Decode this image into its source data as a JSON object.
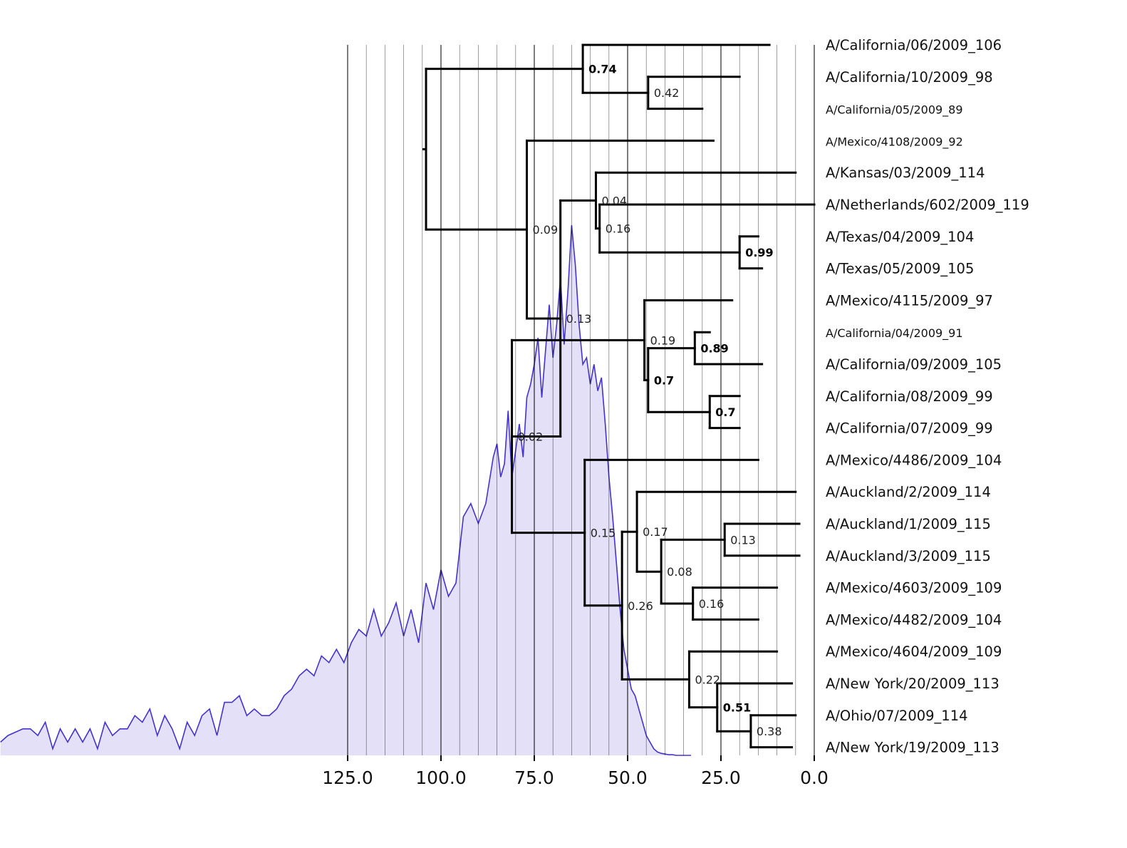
{
  "chart_data": {
    "type": "phylogenetic-tree-with-density",
    "x_axis": {
      "ticks": [
        125,
        100,
        75,
        50,
        25,
        0
      ],
      "tick_labels": [
        "125.0",
        "100.0",
        "75.0",
        "50.0",
        "25.0",
        "0.0"
      ],
      "minor_step": 5,
      "direction": "reversed",
      "grid": true
    },
    "colors": {
      "density_line": "#4433cc",
      "density_fill": "#e4e0f8",
      "tree": "#000000",
      "grid": "#000000"
    },
    "taxa": [
      {
        "name": "A/California/06/2009_106",
        "x": 12
      },
      {
        "name": "A/California/10/2009_98",
        "x": 20
      },
      {
        "name": "A/California/05/2009_89",
        "x": 30
      },
      {
        "name": "A/Mexico/4108/2009_92",
        "x": 27
      },
      {
        "name": "A/Kansas/03/2009_114",
        "x": 5
      },
      {
        "name": "A/Netherlands/602/2009_119",
        "x": 0
      },
      {
        "name": "A/Texas/04/2009_104",
        "x": 15
      },
      {
        "name": "A/Texas/05/2009_105",
        "x": 14
      },
      {
        "name": "A/Mexico/4115/2009_97",
        "x": 22
      },
      {
        "name": "A/California/04/2009_91",
        "x": 28
      },
      {
        "name": "A/California/09/2009_105",
        "x": 14
      },
      {
        "name": "A/California/08/2009_99",
        "x": 20
      },
      {
        "name": "A/California/07/2009_99",
        "x": 20
      },
      {
        "name": "A/Mexico/4486/2009_104",
        "x": 15
      },
      {
        "name": "A/Auckland/2/2009_114",
        "x": 5
      },
      {
        "name": "A/Auckland/1/2009_115",
        "x": 4
      },
      {
        "name": "A/Auckland/3/2009_115",
        "x": 4
      },
      {
        "name": "A/Mexico/4603/2009_109",
        "x": 10
      },
      {
        "name": "A/Mexico/4482/2009_104",
        "x": 15
      },
      {
        "name": "A/Mexico/4604/2009_109",
        "x": 10
      },
      {
        "name": "A/New York/20/2009_113",
        "x": 6
      },
      {
        "name": "A/Ohio/07/2009_114",
        "x": 5
      },
      {
        "name": "A/New York/19/2009_113",
        "x": 6
      }
    ],
    "small_label_taxa": [
      "A/California/05/2009_89",
      "A/Mexico/4108/2009_92",
      "A/California/04/2009_91"
    ],
    "nodes": [
      {
        "id": "n_root",
        "x": 104
      },
      {
        "id": "n_A",
        "x": 62,
        "support": "0.74",
        "bold": true
      },
      {
        "id": "n_A2",
        "x": 44.5,
        "support": "0.42"
      },
      {
        "id": "n_B",
        "x": 77,
        "support": "0.09"
      },
      {
        "id": "n_C",
        "x": 58.5,
        "support": "0.04"
      },
      {
        "id": "n_D",
        "x": 57.5,
        "support": "0.16"
      },
      {
        "id": "n_E",
        "x": 20,
        "support": "0.99",
        "bold": true
      },
      {
        "id": "n_F",
        "x": 68,
        "support": "0.13"
      },
      {
        "id": "n_G",
        "x": 81,
        "support": "0.02"
      },
      {
        "id": "n_H",
        "x": 45.5,
        "support": "0.19"
      },
      {
        "id": "n_I",
        "x": 44.5,
        "support": "0.7",
        "bold": true
      },
      {
        "id": "n_J",
        "x": 32,
        "support": "0.89",
        "bold": true
      },
      {
        "id": "n_K",
        "x": 28,
        "support": "0.7",
        "bold": true
      },
      {
        "id": "n_L",
        "x": 61.5,
        "support": "0.15"
      },
      {
        "id": "n_M",
        "x": 47.5,
        "support": "0.17"
      },
      {
        "id": "n_N",
        "x": 41,
        "support": "0.08"
      },
      {
        "id": "n_O",
        "x": 24,
        "support": "0.13"
      },
      {
        "id": "n_P",
        "x": 32.5,
        "support": "0.16"
      },
      {
        "id": "n_Q",
        "x": 51.5,
        "support": "0.26"
      },
      {
        "id": "n_R",
        "x": 33.5,
        "support": "0.22"
      },
      {
        "id": "n_S",
        "x": 26,
        "support": "0.51",
        "bold": true
      },
      {
        "id": "n_T",
        "x": 17,
        "support": "0.38"
      }
    ],
    "edges": [
      [
        "n_root",
        "n_A"
      ],
      [
        "n_root",
        "n_B"
      ],
      [
        "n_A",
        "t0"
      ],
      [
        "n_A",
        "n_A2"
      ],
      [
        "n_A2",
        "t1"
      ],
      [
        "n_A2",
        "t2"
      ],
      [
        "n_B",
        "t3"
      ],
      [
        "n_B",
        "n_F"
      ],
      [
        "n_F",
        "n_C"
      ],
      [
        "n_F",
        "n_G"
      ],
      [
        "n_C",
        "t4"
      ],
      [
        "n_C",
        "n_D"
      ],
      [
        "n_D",
        "t5"
      ],
      [
        "n_D",
        "n_E"
      ],
      [
        "n_E",
        "t6"
      ],
      [
        "n_E",
        "t7"
      ],
      [
        "n_G",
        "n_H"
      ],
      [
        "n_G",
        "n_L"
      ],
      [
        "n_H",
        "t8"
      ],
      [
        "n_H",
        "n_I"
      ],
      [
        "n_I",
        "n_J"
      ],
      [
        "n_I",
        "n_K"
      ],
      [
        "n_J",
        "t9"
      ],
      [
        "n_J",
        "t10"
      ],
      [
        "n_K",
        "t11"
      ],
      [
        "n_K",
        "t12"
      ],
      [
        "n_L",
        "t13"
      ],
      [
        "n_L",
        "n_Q"
      ],
      [
        "n_Q",
        "n_M"
      ],
      [
        "n_Q",
        "n_R"
      ],
      [
        "n_M",
        "t14"
      ],
      [
        "n_M",
        "n_N"
      ],
      [
        "n_N",
        "n_O"
      ],
      [
        "n_N",
        "n_P"
      ],
      [
        "n_O",
        "t15"
      ],
      [
        "n_O",
        "t16"
      ],
      [
        "n_P",
        "t17"
      ],
      [
        "n_P",
        "t18"
      ],
      [
        "n_R",
        "t19"
      ],
      [
        "n_R",
        "n_S"
      ],
      [
        "n_S",
        "t20"
      ],
      [
        "n_S",
        "n_T"
      ],
      [
        "n_T",
        "t21"
      ],
      [
        "n_T",
        "t22"
      ]
    ],
    "density": {
      "x": [
        218,
        216,
        212,
        210,
        208,
        206,
        204,
        202,
        200,
        198,
        196,
        194,
        192,
        190,
        188,
        186,
        184,
        182,
        180,
        178,
        176,
        174,
        172,
        170,
        168,
        166,
        164,
        162,
        160,
        158,
        156,
        154,
        152,
        150,
        148,
        146,
        144,
        142,
        140,
        138,
        136,
        134,
        132,
        130,
        128,
        126,
        124,
        122,
        120,
        118,
        116,
        114,
        112,
        110,
        108,
        106,
        104,
        102,
        100,
        98,
        96,
        94,
        92,
        90,
        88,
        86,
        85,
        84,
        83,
        82,
        81,
        80,
        79,
        78,
        77,
        76,
        75,
        74,
        73,
        72,
        71,
        70,
        69,
        68,
        67,
        66,
        65,
        64,
        63,
        62,
        61,
        60,
        59,
        58,
        57,
        56,
        55,
        54,
        53,
        52,
        51,
        50,
        49,
        48,
        47,
        46,
        45,
        44,
        43,
        42,
        41,
        40,
        39,
        38,
        37,
        36,
        35,
        34,
        33
      ],
      "y": [
        0.02,
        0.03,
        0.04,
        0.04,
        0.03,
        0.05,
        0.01,
        0.04,
        0.02,
        0.04,
        0.02,
        0.04,
        0.01,
        0.05,
        0.03,
        0.04,
        0.04,
        0.06,
        0.05,
        0.07,
        0.03,
        0.06,
        0.04,
        0.01,
        0.05,
        0.03,
        0.06,
        0.07,
        0.03,
        0.08,
        0.08,
        0.09,
        0.06,
        0.07,
        0.06,
        0.06,
        0.07,
        0.09,
        0.1,
        0.12,
        0.13,
        0.12,
        0.15,
        0.14,
        0.16,
        0.14,
        0.17,
        0.19,
        0.18,
        0.22,
        0.18,
        0.2,
        0.23,
        0.18,
        0.22,
        0.17,
        0.26,
        0.22,
        0.28,
        0.24,
        0.26,
        0.36,
        0.38,
        0.35,
        0.38,
        0.45,
        0.47,
        0.42,
        0.44,
        0.52,
        0.42,
        0.46,
        0.5,
        0.45,
        0.54,
        0.56,
        0.59,
        0.63,
        0.54,
        0.61,
        0.68,
        0.6,
        0.65,
        0.72,
        0.62,
        0.7,
        0.8,
        0.74,
        0.65,
        0.59,
        0.6,
        0.56,
        0.59,
        0.55,
        0.57,
        0.5,
        0.42,
        0.36,
        0.29,
        0.22,
        0.16,
        0.13,
        0.1,
        0.09,
        0.07,
        0.05,
        0.03,
        0.02,
        0.01,
        0.005,
        0.003,
        0.002,
        0.001,
        0.001,
        0.0,
        0.0,
        0.0,
        0.0,
        0.0
      ]
    }
  }
}
